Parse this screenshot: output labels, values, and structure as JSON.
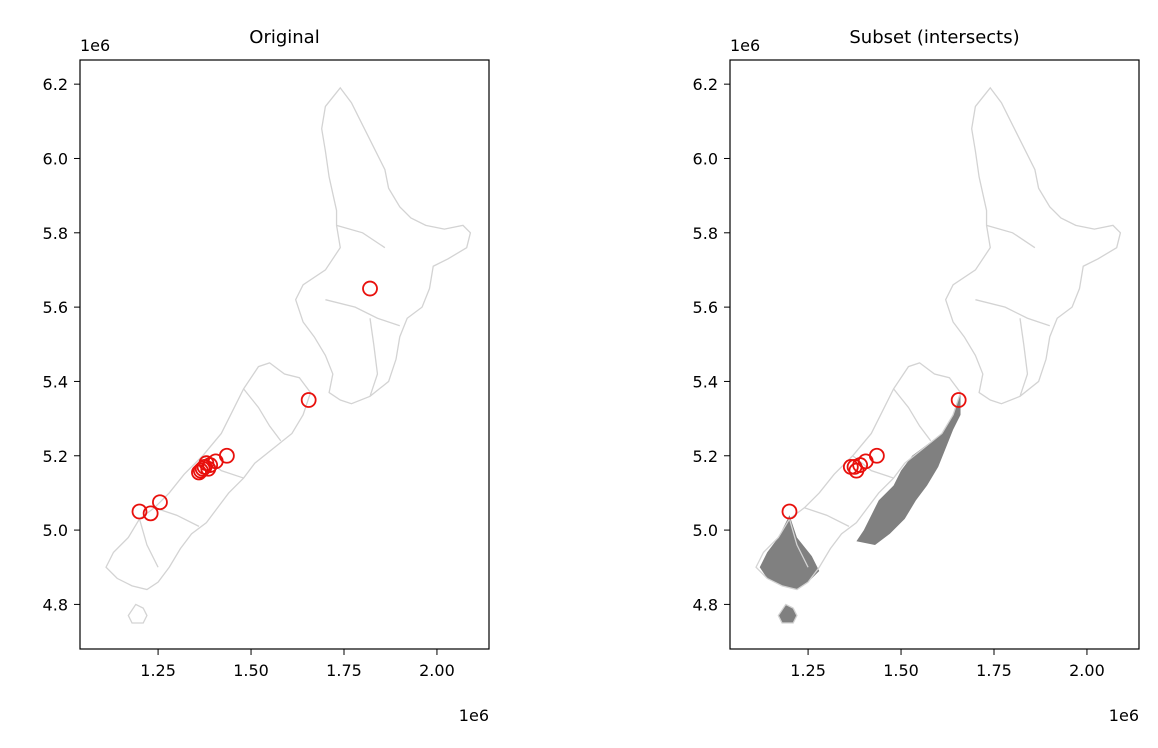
{
  "figure": {
    "offset_label_x": "1e6",
    "offset_label_y": "1e6"
  },
  "chart_data": [
    {
      "type": "scatter",
      "title": "Original",
      "xlim": [
        1.04,
        2.14
      ],
      "ylim": [
        4.68,
        6.265
      ],
      "xticks": [
        1.25,
        1.5,
        1.75,
        2.0
      ],
      "xtick_labels": [
        "1.25",
        "1.50",
        "1.75",
        "2.00"
      ],
      "yticks": [
        4.8,
        5.0,
        5.2,
        5.4,
        5.6,
        5.8,
        6.0,
        6.2
      ],
      "ytick_labels": [
        "4.8",
        "5.0",
        "5.2",
        "5.4",
        "5.6",
        "5.8",
        "6.0",
        "6.2"
      ],
      "basemap": "region outlines in light grey",
      "highlighted_regions": [],
      "points": [
        {
          "x": 1.82,
          "y": 5.65
        },
        {
          "x": 1.655,
          "y": 5.35
        },
        {
          "x": 1.435,
          "y": 5.2
        },
        {
          "x": 1.405,
          "y": 5.185
        },
        {
          "x": 1.39,
          "y": 5.175
        },
        {
          "x": 1.38,
          "y": 5.18
        },
        {
          "x": 1.375,
          "y": 5.17
        },
        {
          "x": 1.37,
          "y": 5.165
        },
        {
          "x": 1.365,
          "y": 5.16
        },
        {
          "x": 1.36,
          "y": 5.155
        },
        {
          "x": 1.385,
          "y": 5.165
        },
        {
          "x": 1.255,
          "y": 5.075
        },
        {
          "x": 1.2,
          "y": 5.05
        },
        {
          "x": 1.23,
          "y": 5.045
        }
      ],
      "marker": {
        "shape": "hollow circle",
        "color": "#e8100c"
      }
    },
    {
      "type": "scatter",
      "title": "Subset (intersects)",
      "xlim": [
        1.04,
        2.14
      ],
      "ylim": [
        4.68,
        6.265
      ],
      "xticks": [
        1.25,
        1.5,
        1.75,
        2.0
      ],
      "xtick_labels": [
        "1.25",
        "1.50",
        "1.75",
        "2.00"
      ],
      "yticks": [
        4.8,
        5.0,
        5.2,
        5.4,
        5.6,
        5.8,
        6.0,
        6.2
      ],
      "ytick_labels": [
        "4.8",
        "5.0",
        "5.2",
        "5.4",
        "5.6",
        "5.8",
        "6.0",
        "6.2"
      ],
      "basemap": "region outlines in light grey",
      "highlighted_regions": [
        "west-coast-canterbury-band",
        "southland-fiordland"
      ],
      "points": [
        {
          "x": 1.655,
          "y": 5.35
        },
        {
          "x": 1.435,
          "y": 5.2
        },
        {
          "x": 1.405,
          "y": 5.185
        },
        {
          "x": 1.39,
          "y": 5.175
        },
        {
          "x": 1.375,
          "y": 5.17
        },
        {
          "x": 1.365,
          "y": 5.17
        },
        {
          "x": 1.38,
          "y": 5.16
        },
        {
          "x": 1.2,
          "y": 5.05
        }
      ],
      "marker": {
        "shape": "hollow circle",
        "color": "#e8100c"
      }
    }
  ],
  "colors": {
    "outline": "#d3d3d3",
    "fill": "#808080",
    "marker": "#e8100c",
    "axes": "#000000"
  }
}
